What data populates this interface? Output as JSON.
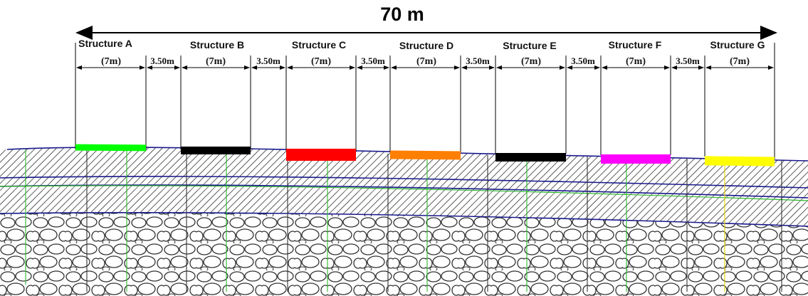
{
  "title": "70 m",
  "structures": [
    {
      "name": "Structure A",
      "width_label": "(7m)",
      "color": "#00ff00"
    },
    {
      "name": "Structure B",
      "width_label": "(7m)",
      "color": "#000000"
    },
    {
      "name": "Structure C",
      "width_label": "(7m)",
      "color": "#ff0000"
    },
    {
      "name": "Structure D",
      "width_label": "(7m)",
      "color": "#ff7f00"
    },
    {
      "name": "Structure E",
      "width_label": "(7m)",
      "color": "#000000"
    },
    {
      "name": "Structure F",
      "width_label": "(7m)",
      "color": "#ff00ff"
    },
    {
      "name": "Structure G",
      "width_label": "(7m)",
      "color": "#ffff00"
    }
  ],
  "gap_label": "3.50m",
  "colors": {
    "layer_boundary": "#1a1a8c",
    "grid_line": "#2db82d",
    "hatch": "#333333"
  }
}
